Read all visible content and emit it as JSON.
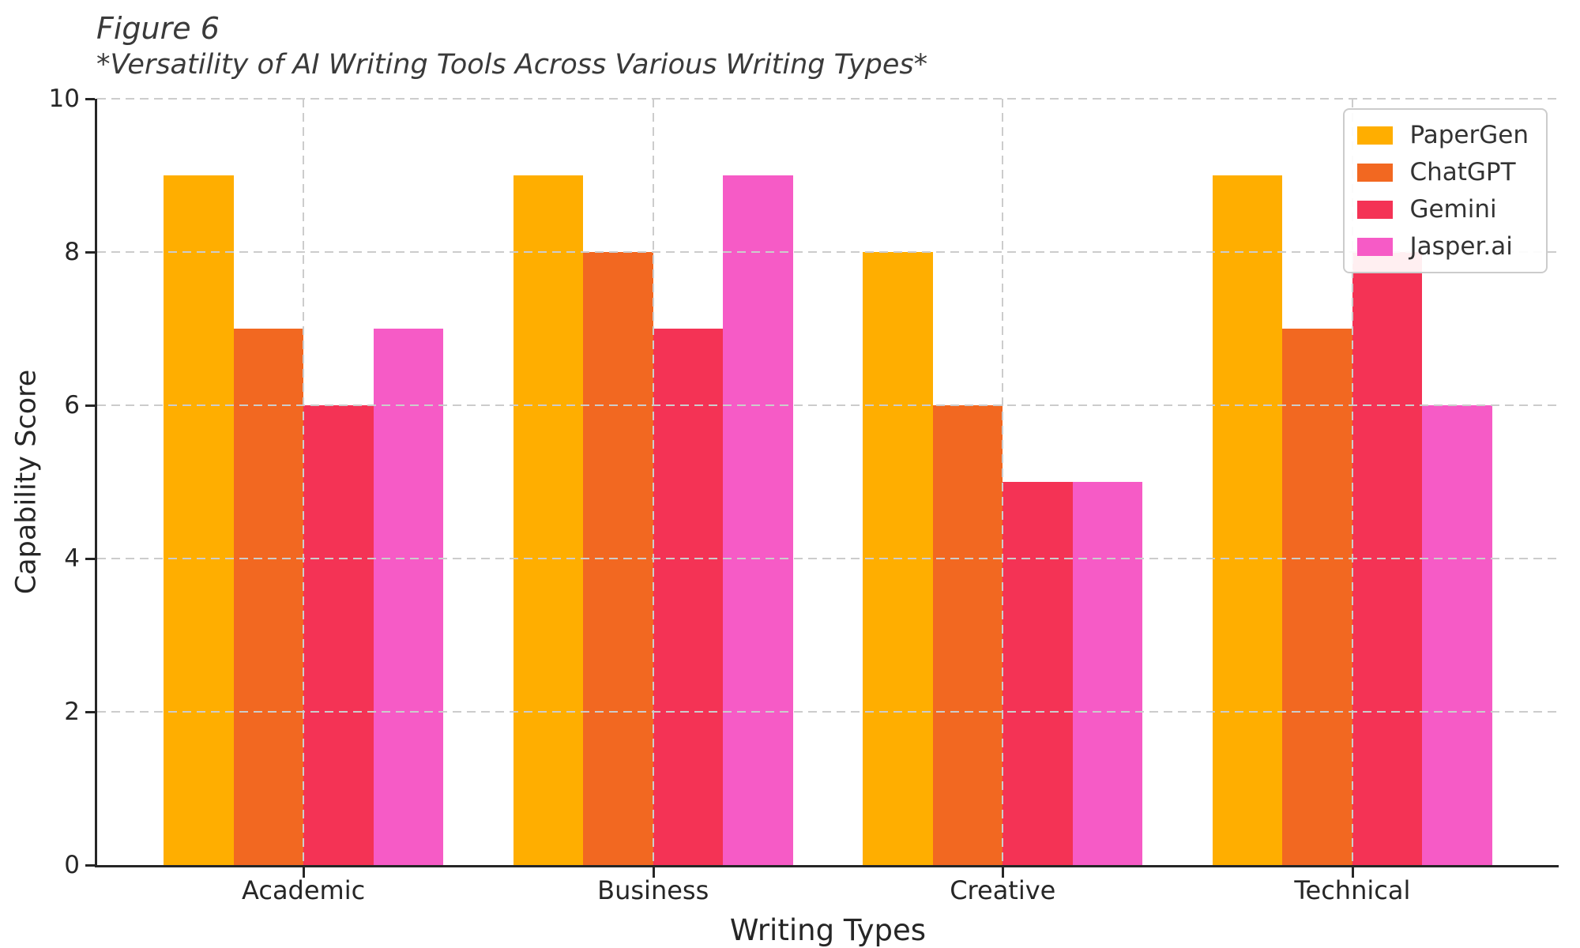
{
  "chart_data": {
    "type": "bar",
    "title": "Figure 6",
    "subtitle": "*Versatility of AI Writing Tools Across Various Writing Types*",
    "xlabel": "Writing Types",
    "ylabel": "Capability Score",
    "categories": [
      "Academic",
      "Business",
      "Creative",
      "Technical"
    ],
    "series": [
      {
        "name": "PaperGen",
        "color": "#FFAE00",
        "values": [
          9,
          9,
          8,
          9
        ]
      },
      {
        "name": "ChatGPT",
        "color": "#F26821",
        "values": [
          7,
          8,
          6,
          7
        ]
      },
      {
        "name": "Gemini",
        "color": "#F43355",
        "values": [
          6,
          7,
          5,
          8
        ]
      },
      {
        "name": "Jasper.ai",
        "color": "#F65BC6",
        "values": [
          7,
          9,
          5,
          6
        ]
      }
    ],
    "ylim": [
      0,
      10
    ],
    "yticks": [
      0,
      2,
      4,
      6,
      8,
      10
    ],
    "grid": "dashed",
    "grid_color": "#cccccc",
    "axis_color": "#262626",
    "legend_position": "upper right"
  }
}
